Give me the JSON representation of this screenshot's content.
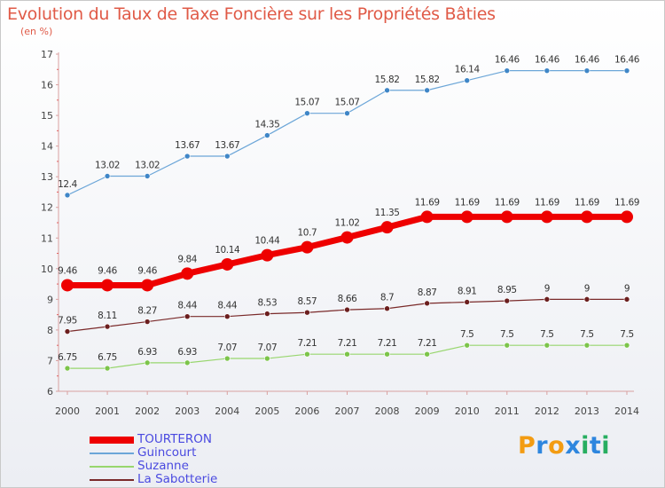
{
  "title": "Evolution du Taux de Taxe Foncière sur les Propriétés Bâties",
  "subtitle": "(en %)",
  "logo": {
    "letters": [
      "P",
      "r",
      "o",
      "x",
      "i",
      "t",
      "i"
    ],
    "colors": [
      "#f39c12",
      "#2e86de",
      "#f39c12",
      "#2e86de",
      "#27ae60",
      "#2e86de",
      "#27ae60"
    ]
  },
  "chart_data": {
    "type": "line",
    "x": [
      "2000",
      "2001",
      "2002",
      "2003",
      "2004",
      "2005",
      "2006",
      "2007",
      "2008",
      "2009",
      "2010",
      "2011",
      "2012",
      "2013",
      "2014"
    ],
    "ylim": [
      6,
      17
    ],
    "yticks": [
      "6",
      "7",
      "8",
      "9",
      "10",
      "11",
      "12",
      "13",
      "14",
      "15",
      "16",
      "17"
    ],
    "grid": false,
    "legend_position": "bottom-left",
    "series": [
      {
        "name": "Guincourt",
        "color": "#6ca6d8",
        "marker_color": "#3f86c7",
        "width": 1.2,
        "marker_r": 3,
        "values": [
          12.4,
          13.02,
          13.02,
          13.67,
          13.67,
          14.35,
          15.07,
          15.07,
          15.82,
          15.82,
          16.14,
          16.46,
          16.46,
          16.46,
          16.46
        ],
        "labels": [
          "12.4",
          "13.02",
          "13.02",
          "13.67",
          "13.67",
          "14.35",
          "15.07",
          "15.07",
          "15.82",
          "15.82",
          "16.14",
          "16.46",
          "16.46",
          "16.46",
          "16.46"
        ]
      },
      {
        "name": "TOURTERON",
        "color": "#ee0000",
        "marker_color": "#ee0000",
        "width": 7,
        "marker_r": 7,
        "values": [
          9.46,
          9.46,
          9.46,
          9.84,
          10.14,
          10.44,
          10.7,
          11.02,
          11.35,
          11.69,
          11.69,
          11.69,
          11.69,
          11.69,
          11.69
        ],
        "labels": [
          "9.46",
          "9.46",
          "9.46",
          "9.84",
          "10.14",
          "10.44",
          "10.7",
          "11.02",
          "11.35",
          "11.69",
          "11.69",
          "11.69",
          "11.69",
          "11.69",
          "11.69"
        ]
      },
      {
        "name": "La Sabotterie",
        "color": "#7a2a2a",
        "marker_color": "#6b1e1e",
        "width": 1.2,
        "marker_r": 3,
        "values": [
          7.95,
          8.11,
          8.27,
          8.44,
          8.44,
          8.53,
          8.57,
          8.66,
          8.7,
          8.87,
          8.91,
          8.95,
          9,
          9,
          9
        ],
        "labels": [
          "7.95",
          "8.11",
          "8.27",
          "8.44",
          "8.44",
          "8.53",
          "8.57",
          "8.66",
          "8.7",
          "8.87",
          "8.91",
          "8.95",
          "9",
          "9",
          "9"
        ]
      },
      {
        "name": "Suzanne",
        "color": "#98d66e",
        "marker_color": "#7cc44a",
        "width": 1.2,
        "marker_r": 3,
        "values": [
          6.75,
          6.75,
          6.93,
          6.93,
          7.07,
          7.07,
          7.21,
          7.21,
          7.21,
          7.21,
          7.5,
          7.5,
          7.5,
          7.5,
          7.5
        ],
        "labels": [
          "6.75",
          "6.75",
          "6.93",
          "6.93",
          "7.07",
          "7.07",
          "7.21",
          "7.21",
          "7.21",
          "7.21",
          "7.5",
          "7.5",
          "7.5",
          "7.5",
          "7.5"
        ]
      }
    ],
    "legend": [
      {
        "name": "TOURTERON",
        "color": "#ee0000",
        "width": 8
      },
      {
        "name": "Guincourt",
        "color": "#6ca6d8",
        "width": 2
      },
      {
        "name": "Suzanne",
        "color": "#98d66e",
        "width": 2
      },
      {
        "name": "La Sabotterie",
        "color": "#7a2a2a",
        "width": 2
      }
    ]
  }
}
